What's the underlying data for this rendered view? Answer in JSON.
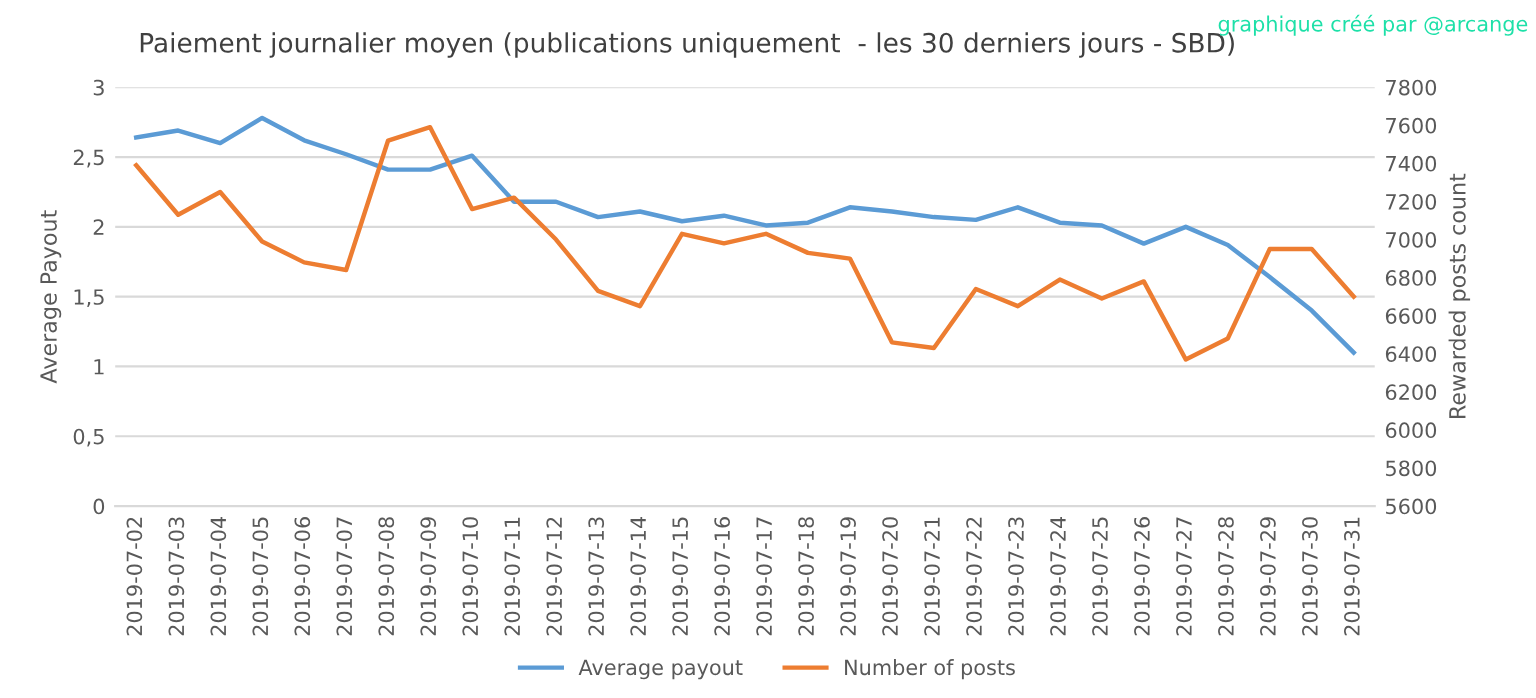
{
  "chart_data": {
    "type": "line",
    "title": "Paiement journalier moyen (publications uniquement  - les 30 derniers jours - SBD)",
    "annotations": [
      "graphique créé par @arcange"
    ],
    "categories": [
      "2019-07-02",
      "2019-07-03",
      "2019-07-04",
      "2019-07-05",
      "2019-07-06",
      "2019-07-07",
      "2019-07-08",
      "2019-07-09",
      "2019-07-10",
      "2019-07-11",
      "2019-07-12",
      "2019-07-13",
      "2019-07-14",
      "2019-07-15",
      "2019-07-16",
      "2019-07-17",
      "2019-07-18",
      "2019-07-19",
      "2019-07-20",
      "2019-07-21",
      "2019-07-22",
      "2019-07-23",
      "2019-07-24",
      "2019-07-25",
      "2019-07-26",
      "2019-07-27",
      "2019-07-28",
      "2019-07-29",
      "2019-07-30",
      "2019-07-31"
    ],
    "series": [
      {
        "name": "Average payout",
        "color": "#5b9bd5",
        "values": [
          2.64,
          2.69,
          2.6,
          2.78,
          2.62,
          2.52,
          2.41,
          2.41,
          2.51,
          2.18,
          2.18,
          2.07,
          2.11,
          2.04,
          2.08,
          2.01,
          2.03,
          2.14,
          2.11,
          2.07,
          2.05,
          2.14,
          2.03,
          2.01,
          1.88,
          2.0,
          1.87,
          1.64,
          1.4,
          1.1
        ]
      },
      {
        "name": "Number of posts",
        "color": "#ed7d31",
        "axis": "y2",
        "values": [
          7390,
          7130,
          7250,
          6990,
          6880,
          6840,
          7520,
          7590,
          7160,
          7220,
          7000,
          6730,
          6650,
          7030,
          6980,
          7030,
          6930,
          6900,
          6460,
          6430,
          6740,
          6650,
          6790,
          6690,
          6780,
          6370,
          6480,
          6950,
          6950,
          6700
        ]
      }
    ],
    "ylabel": "Average Payout",
    "y2label": "Rewarded posts count",
    "ylim": [
      0,
      3
    ],
    "yticks": [
      0,
      {
        "value": 0.5,
        "label": "0,5"
      },
      1,
      {
        "value": 1.5,
        "label": "1,5"
      },
      2,
      {
        "value": 2.5,
        "label": "2,5"
      },
      3
    ],
    "y2lim": [
      5600,
      7800
    ],
    "y2ticks": [
      5600,
      5800,
      6000,
      6200,
      6400,
      6600,
      6800,
      7000,
      7200,
      7400,
      7600,
      7800
    ],
    "grid": "y",
    "legend": "bottom",
    "marker": "none",
    "line_style": "solid"
  }
}
